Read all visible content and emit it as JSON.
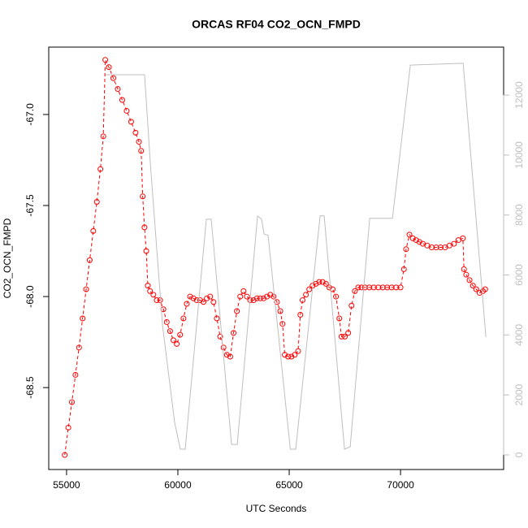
{
  "chart_data": {
    "type": "line",
    "title": "ORCAS RF04 CO2_OCN_FMPD",
    "x_label": "UTC Seconds",
    "y_label": "CO2_OCN_FMPD",
    "xlim": [
      54200,
      74630
    ],
    "ylim": [
      -68.95,
      -66.63
    ],
    "y2lim": [
      -488,
      13600
    ],
    "xticks": [
      55000,
      60000,
      65000,
      70000
    ],
    "yticks": [
      {
        "value": -67,
        "label": "-67.0"
      },
      -67.5,
      {
        "value": -68,
        "label": "-68.0"
      },
      -68.5
    ],
    "y2ticks": [
      0,
      2000,
      4000,
      6000,
      8000,
      10000,
      12000
    ],
    "series": [
      {
        "color": "#ff0000",
        "x": [
          54920,
          55080,
          55240,
          55400,
          55560,
          55720,
          55880,
          56040,
          56200,
          56360,
          56520,
          56650,
          56740,
          56900,
          57100,
          57300,
          57500,
          57700,
          57900,
          58100,
          58250,
          58350,
          58420,
          58500,
          58580,
          58650,
          58750,
          58900,
          59050,
          59200,
          59350,
          59500,
          59650,
          59800,
          59950,
          60100,
          60250,
          60400,
          60550,
          60700,
          60850,
          61000,
          61150,
          61300,
          61450,
          61600,
          61750,
          61900,
          62050,
          62200,
          62350,
          62500,
          62650,
          62800,
          62950,
          63100,
          63250,
          63400,
          63550,
          63700,
          63850,
          64000,
          64150,
          64300,
          64450,
          64600,
          64700,
          64800,
          64950,
          65100,
          65250,
          65400,
          65500,
          65600,
          65750,
          65900,
          66050,
          66200,
          66350,
          66500,
          66650,
          66800,
          66950,
          67100,
          67250,
          67350,
          67500,
          67650,
          67800,
          67950,
          68100,
          68250,
          68400,
          68600,
          68800,
          69000,
          69200,
          69400,
          69600,
          69800,
          70000,
          70150,
          70250,
          70400,
          70550,
          70700,
          70850,
          71000,
          71200,
          71400,
          71600,
          71800,
          72000,
          72200,
          72400,
          72600,
          72800,
          72850,
          72950,
          73100,
          73250,
          73400,
          73550,
          73700,
          73800
        ],
        "values": [
          -68.87,
          -68.72,
          -68.58,
          -68.43,
          -68.28,
          -68.12,
          -67.96,
          -67.8,
          -67.64,
          -67.48,
          -67.3,
          -67.12,
          -66.7,
          -66.74,
          -66.8,
          -66.86,
          -66.92,
          -66.98,
          -67.04,
          -67.1,
          -67.15,
          -67.2,
          -67.45,
          -67.62,
          -67.75,
          -67.94,
          -67.97,
          -67.99,
          -68.02,
          -68.02,
          -68.07,
          -68.14,
          -68.19,
          -68.24,
          -68.26,
          -68.21,
          -68.12,
          -68.04,
          -68,
          -68.01,
          -68.02,
          -68.02,
          -68.03,
          -68.01,
          -68,
          -68.03,
          -68.12,
          -68.22,
          -68.28,
          -68.32,
          -68.33,
          -68.2,
          -68.08,
          -68,
          -67.97,
          -68,
          -68.02,
          -68.02,
          -68.01,
          -68.01,
          -68.01,
          -68,
          -67.99,
          -68,
          -68.03,
          -68.08,
          -68.15,
          -68.32,
          -68.33,
          -68.33,
          -68.32,
          -68.3,
          -68.1,
          -68.02,
          -67.99,
          -67.96,
          -67.94,
          -67.93,
          -67.92,
          -67.92,
          -67.93,
          -67.95,
          -67.96,
          -68,
          -68.12,
          -68.22,
          -68.22,
          -68.2,
          -68.05,
          -67.97,
          -67.95,
          -67.95,
          -67.95,
          -67.95,
          -67.95,
          -67.95,
          -67.95,
          -67.95,
          -67.95,
          -67.95,
          -67.95,
          -67.85,
          -67.74,
          -67.66,
          -67.68,
          -67.69,
          -67.7,
          -67.71,
          -67.72,
          -67.73,
          -67.73,
          -67.73,
          -67.73,
          -67.72,
          -67.71,
          -67.69,
          -67.68,
          -67.85,
          -67.88,
          -67.91,
          -67.94,
          -67.96,
          -67.98,
          -67.97,
          -67.96
        ]
      },
      {
        "color": "#bebebe",
        "axis": "y2",
        "x": [
          56752,
          58504,
          58760,
          59307,
          59855,
          60110,
          60329,
          61278,
          61497,
          62410,
          62665,
          63578,
          63760,
          63870,
          64052,
          65050,
          65293,
          66388,
          66571,
          67483,
          67739,
          68615,
          69637,
          70440,
          72812,
          73834
        ],
        "values": [
          12680,
          12680,
          9750,
          4340,
          1080,
          190,
          190,
          7860,
          7860,
          350,
          350,
          7970,
          7860,
          7370,
          7320,
          190,
          190,
          7970,
          7970,
          190,
          270,
          7890,
          7890,
          13000,
          13060,
          3930
        ]
      }
    ]
  }
}
